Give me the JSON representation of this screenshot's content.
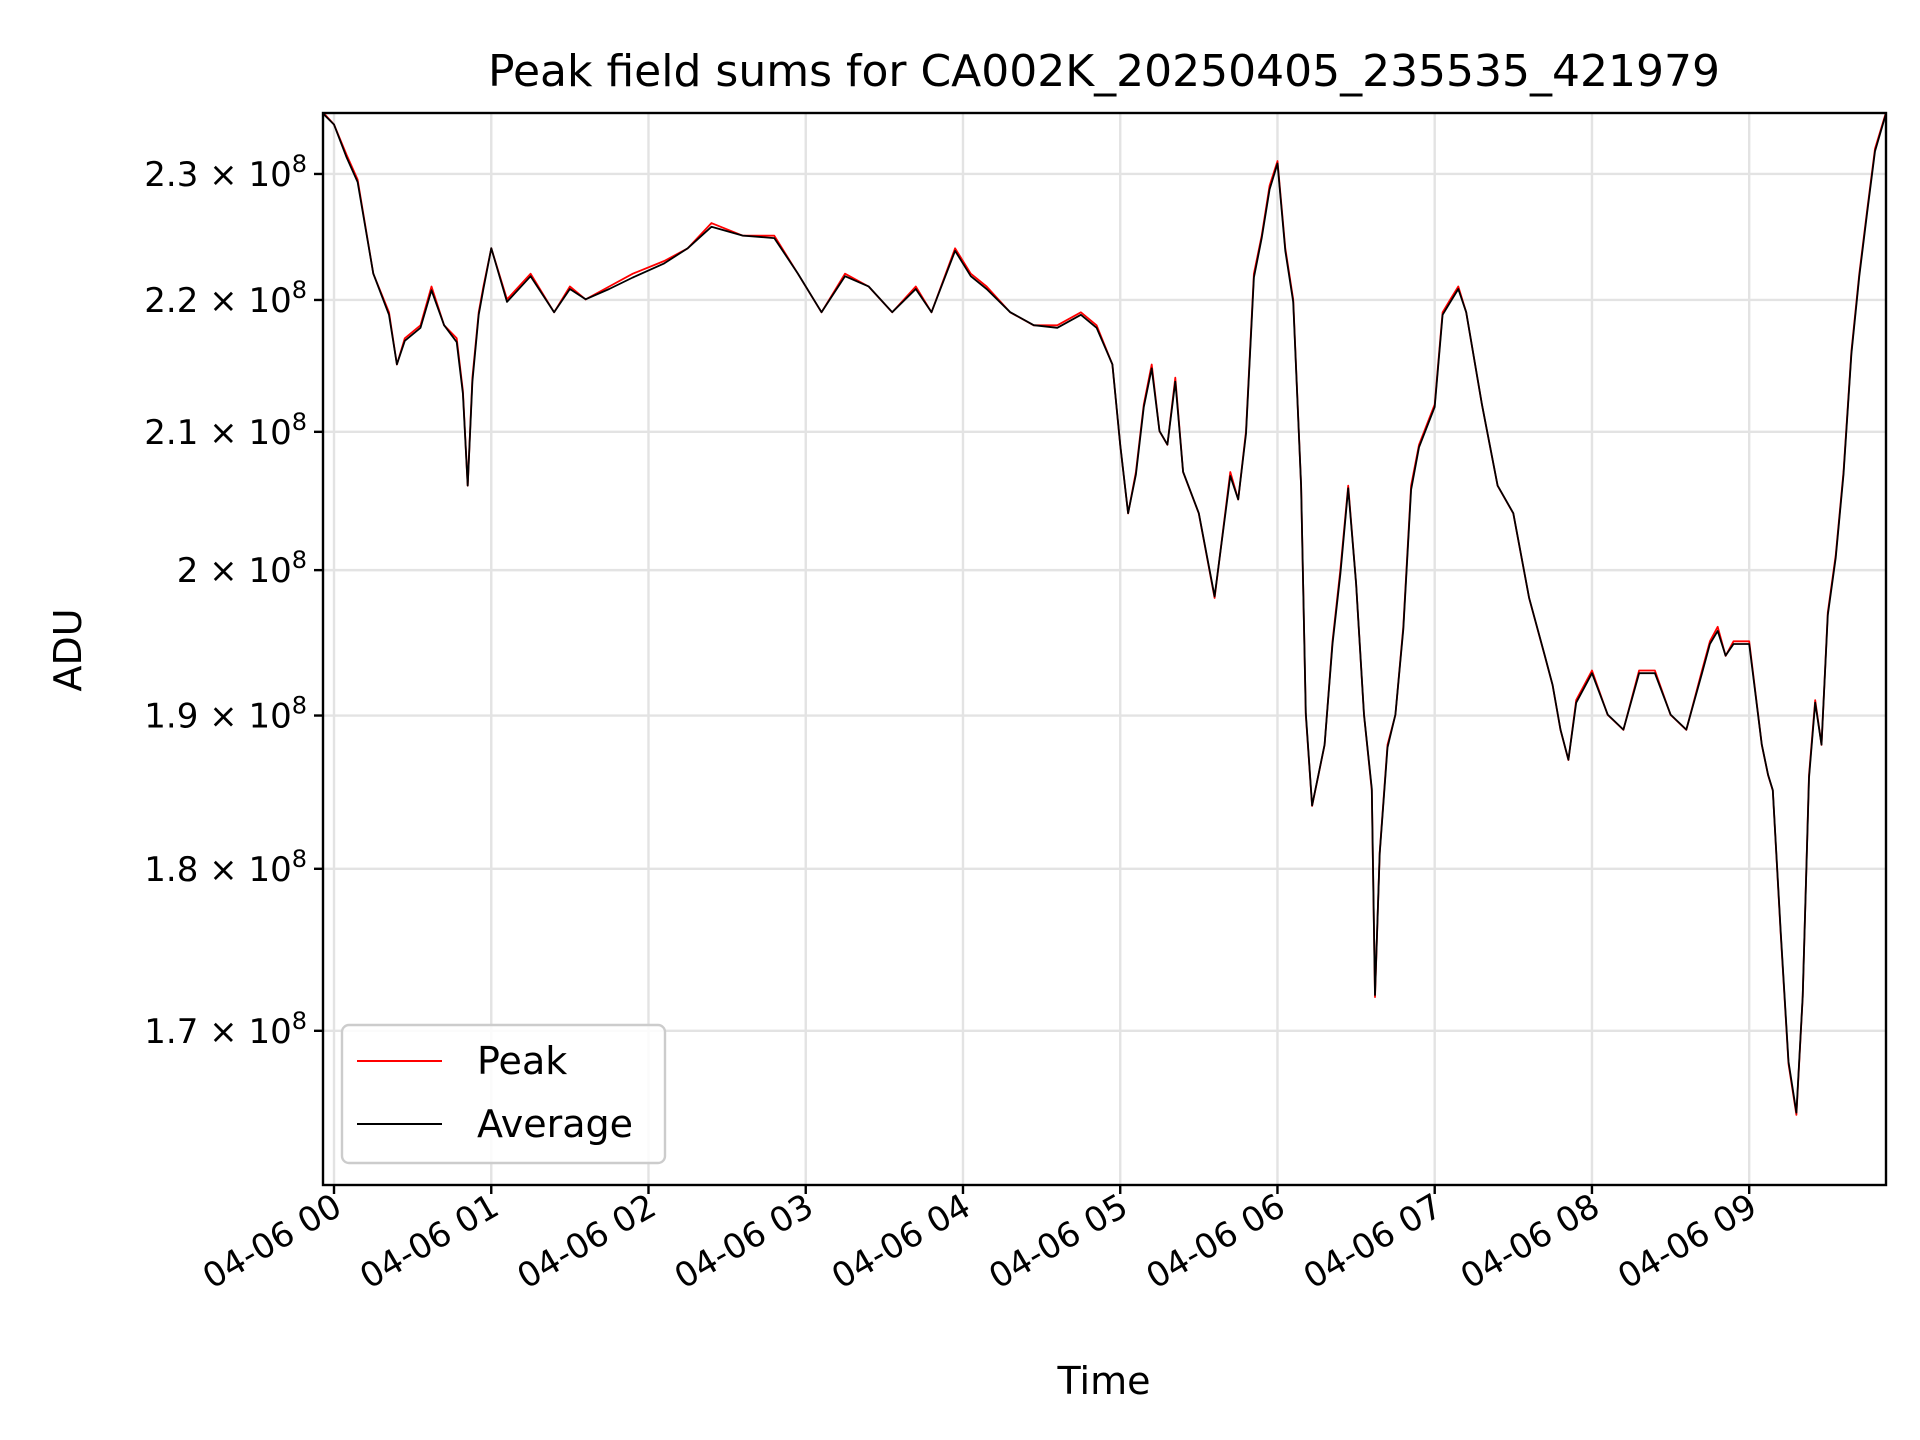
{
  "chart_data": {
    "type": "line",
    "title": "Peak field sums for CA002K_20250405_235535_421979",
    "xlabel": "Time",
    "ylabel": "ADU",
    "x_ticks": [
      "04-06 00",
      "04-06 01",
      "04-06 02",
      "04-06 03",
      "04-06 04",
      "04-06 05",
      "04-06 06",
      "04-06 07",
      "04-06 08",
      "04-06 09"
    ],
    "y_ticks": [
      {
        "value": 170000000,
        "label": "1.7 × 10",
        "exp": "8"
      },
      {
        "value": 180000000,
        "label": "1.8 × 10",
        "exp": "8"
      },
      {
        "value": 190000000,
        "label": "1.9 × 10",
        "exp": "8"
      },
      {
        "value": 200000000,
        "label": "2 × 10",
        "exp": "8"
      },
      {
        "value": 210000000,
        "label": "2.1 × 10",
        "exp": "8"
      },
      {
        "value": 220000000,
        "label": "2.2 × 10",
        "exp": "8"
      },
      {
        "value": 230000000,
        "label": "2.3 × 10",
        "exp": "8"
      }
    ],
    "x_unit": "hours after 04-06 00:00",
    "xlim": [
      -0.07,
      9.87
    ],
    "ylim": [
      161000000,
      235000000
    ],
    "y_scale": "log",
    "grid": true,
    "legend_position": "lower-left",
    "series": [
      {
        "name": "Peak",
        "color": "#ff0000"
      },
      {
        "name": "Average",
        "color": "#000000"
      }
    ],
    "x": [
      -0.07,
      0.0,
      0.08,
      0.15,
      0.25,
      0.35,
      0.4,
      0.45,
      0.55,
      0.62,
      0.7,
      0.78,
      0.82,
      0.85,
      0.88,
      0.92,
      0.95,
      1.0,
      1.1,
      1.25,
      1.4,
      1.5,
      1.6,
      1.75,
      1.9,
      2.1,
      2.25,
      2.4,
      2.6,
      2.8,
      2.95,
      3.1,
      3.25,
      3.4,
      3.55,
      3.7,
      3.8,
      3.95,
      4.05,
      4.15,
      4.3,
      4.45,
      4.6,
      4.75,
      4.85,
      4.95,
      5.0,
      5.05,
      5.1,
      5.15,
      5.2,
      5.25,
      5.3,
      5.35,
      5.4,
      5.5,
      5.6,
      5.7,
      5.75,
      5.8,
      5.85,
      5.9,
      5.95,
      6.0,
      6.05,
      6.1,
      6.15,
      6.18,
      6.22,
      6.26,
      6.3,
      6.35,
      6.4,
      6.45,
      6.5,
      6.55,
      6.6,
      6.62,
      6.65,
      6.7,
      6.75,
      6.8,
      6.85,
      6.9,
      7.0,
      7.05,
      7.1,
      7.15,
      7.2,
      7.3,
      7.4,
      7.5,
      7.6,
      7.7,
      7.75,
      7.8,
      7.85,
      7.9,
      8.0,
      8.1,
      8.2,
      8.3,
      8.4,
      8.5,
      8.6,
      8.7,
      8.75,
      8.8,
      8.85,
      8.9,
      9.0,
      9.08,
      9.12,
      9.15,
      9.2,
      9.25,
      9.3,
      9.34,
      9.38,
      9.42,
      9.46,
      9.5,
      9.55,
      9.6,
      9.65,
      9.7,
      9.75,
      9.8,
      9.87
    ],
    "peak": [
      235000000,
      234000000,
      231500000,
      229500000,
      222000000,
      219000000,
      215000000,
      217000000,
      218000000,
      221000000,
      218000000,
      217000000,
      213000000,
      206000000,
      214000000,
      219000000,
      221000000,
      224000000,
      220000000,
      222000000,
      219000000,
      221000000,
      220000000,
      221000000,
      222000000,
      223000000,
      224000000,
      226000000,
      225000000,
      225000000,
      222000000,
      219000000,
      222000000,
      221000000,
      219000000,
      221000000,
      219000000,
      224000000,
      222000000,
      221000000,
      219000000,
      218000000,
      218000000,
      219000000,
      218000000,
      215000000,
      209000000,
      204000000,
      207000000,
      212000000,
      215000000,
      210000000,
      209000000,
      214000000,
      207000000,
      204000000,
      198000000,
      207000000,
      205000000,
      210000000,
      222000000,
      225000000,
      229000000,
      231000000,
      224000000,
      220000000,
      206000000,
      190000000,
      184000000,
      186000000,
      188000000,
      195000000,
      200000000,
      206000000,
      199000000,
      190000000,
      185000000,
      172000000,
      181000000,
      188000000,
      190000000,
      196000000,
      206000000,
      209000000,
      212000000,
      219000000,
      220000000,
      221000000,
      219000000,
      212000000,
      206000000,
      204000000,
      198000000,
      194000000,
      192000000,
      189000000,
      187000000,
      191000000,
      193000000,
      190000000,
      189000000,
      193000000,
      193000000,
      190000000,
      189000000,
      193000000,
      195000000,
      196000000,
      194000000,
      195000000,
      195000000,
      188000000,
      186000000,
      185000000,
      176000000,
      168000000,
      165000000,
      172000000,
      186000000,
      191000000,
      188000000,
      197000000,
      201000000,
      207000000,
      216000000,
      222000000,
      227000000,
      232000000,
      235000000
    ],
    "average": [
      235000000,
      234100000,
      231400000,
      229400000,
      222100000,
      218900000,
      215100000,
      216900000,
      217900000,
      220800000,
      218100000,
      216800000,
      212900000,
      206100000,
      213800000,
      218900000,
      220900000,
      224100000,
      219900000,
      221900000,
      219100000,
      220900000,
      220100000,
      220900000,
      221800000,
      222900000,
      224100000,
      225800000,
      225100000,
      224900000,
      222100000,
      219100000,
      221900000,
      221100000,
      219100000,
      220900000,
      219100000,
      223900000,
      221900000,
      220900000,
      219100000,
      218100000,
      217900000,
      218900000,
      217900000,
      215100000,
      209100000,
      204100000,
      206900000,
      211900000,
      214800000,
      210100000,
      209100000,
      213800000,
      207100000,
      204100000,
      198200000,
      206800000,
      205100000,
      209900000,
      221800000,
      224900000,
      228800000,
      230900000,
      223900000,
      219900000,
      206100000,
      190200000,
      184100000,
      186100000,
      188100000,
      194900000,
      199800000,
      205900000,
      199100000,
      190100000,
      185200000,
      172200000,
      181000000,
      187900000,
      190100000,
      195900000,
      205800000,
      208900000,
      211900000,
      218900000,
      219900000,
      220900000,
      219100000,
      212100000,
      206100000,
      204100000,
      198100000,
      194100000,
      192100000,
      189100000,
      187100000,
      190900000,
      192900000,
      190100000,
      189100000,
      192900000,
      192900000,
      190100000,
      189100000,
      192900000,
      194900000,
      195800000,
      194100000,
      194900000,
      194900000,
      188100000,
      186100000,
      185100000,
      176200000,
      168200000,
      165200000,
      172100000,
      185900000,
      190900000,
      188100000,
      196900000,
      200900000,
      206900000,
      215900000,
      221900000,
      226900000,
      231900000,
      235000000
    ]
  }
}
